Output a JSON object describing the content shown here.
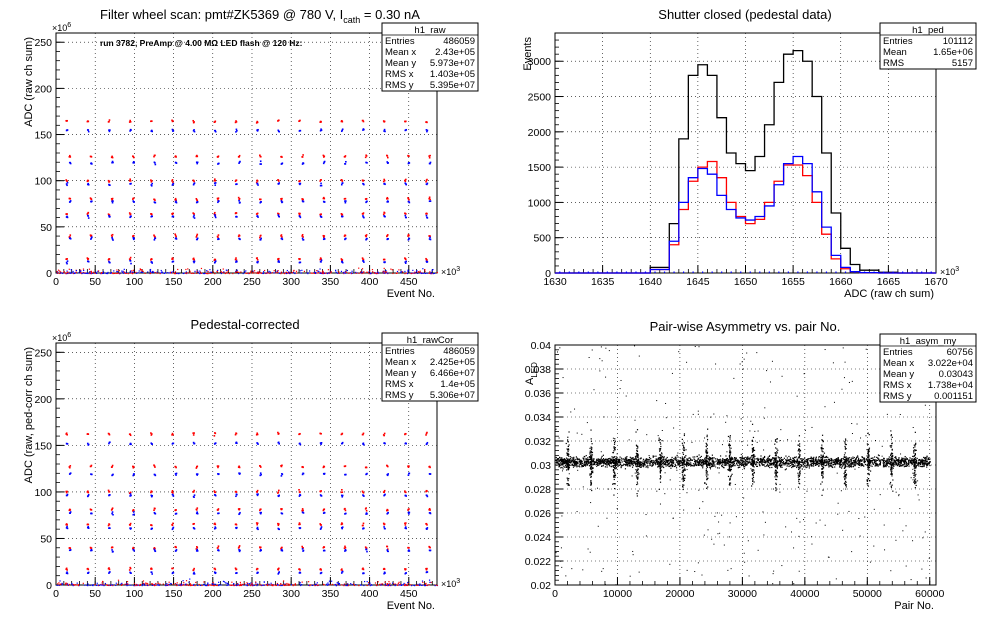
{
  "chart_data": [
    {
      "type": "scatter",
      "title": "Filter wheel scan: pmt#ZK5369 @   780 V, I",
      "title_sub": "cath",
      "title_tail": " = 0.30 nA",
      "annotation": "run 3782, PreAmp @ 4.00 MΩ LED flash @  120 Hz:",
      "xlabel": "Event No.",
      "ylabel": "ADC (raw ch sum)",
      "x_exponent": "×10",
      "x_exponent_power": "3",
      "y_exponent": "×10",
      "y_exponent_power": "6",
      "xlim": [
        0,
        486
      ],
      "ylim": [
        0,
        260
      ],
      "xticks": [
        "0",
        "50",
        "100",
        "150",
        "200",
        "250",
        "300",
        "350",
        "400",
        "450"
      ],
      "yticks": [
        "0",
        "50",
        "100",
        "150",
        "200",
        "250"
      ],
      "grid": true,
      "stats": {
        "name": "h1_raw",
        "rows": [
          [
            "Entries",
            "486059"
          ],
          [
            "Mean x",
            "2.43e+05"
          ],
          [
            "Mean y",
            "5.973e+07"
          ],
          [
            "RMS x",
            "1.403e+05"
          ],
          [
            "RMS y",
            "5.395e+07"
          ]
        ]
      },
      "series": [
        {
          "color": "#ff0000",
          "levels": [
            165,
            127,
            101,
            81,
            65,
            41,
            16
          ]
        },
        {
          "color": "#0000ff",
          "levels": [
            155,
            120,
            97,
            78,
            62,
            38,
            13
          ]
        }
      ]
    },
    {
      "type": "line",
      "title": "Shutter closed (pedestal data)",
      "xlabel": "ADC (raw ch sum)",
      "ylabel": "Events",
      "x_exponent": "×10",
      "x_exponent_power": "3",
      "xlim": [
        1630,
        1670
      ],
      "ylim": [
        0,
        3400
      ],
      "xticks": [
        "1630",
        "1635",
        "1640",
        "1645",
        "1650",
        "1655",
        "1660",
        "1665",
        "1670"
      ],
      "yticks": [
        "0",
        "500",
        "1000",
        "1500",
        "2000",
        "2500",
        "3000"
      ],
      "grid": true,
      "stats": {
        "name": "h1_ped",
        "rows": [
          [
            "Entries",
            "101112"
          ],
          [
            "Mean",
            "1.65e+06"
          ],
          [
            "RMS",
            "5157"
          ]
        ]
      },
      "series": [
        {
          "color": "#000000",
          "x": [
            1638,
            1640,
            1642,
            1643,
            1644,
            1645,
            1646,
            1647,
            1648,
            1649,
            1650,
            1651,
            1652,
            1653,
            1654,
            1655,
            1656,
            1657,
            1658,
            1659,
            1660,
            1661,
            1662,
            1664,
            1666
          ],
          "y": [
            0,
            80,
            700,
            1900,
            2800,
            2950,
            2800,
            2200,
            1700,
            1550,
            1450,
            1650,
            2100,
            2700,
            3100,
            3150,
            3000,
            2500,
            1700,
            850,
            350,
            120,
            40,
            10,
            0
          ]
        },
        {
          "color": "#ff0000",
          "x": [
            1638,
            1640,
            1642,
            1643,
            1644,
            1645,
            1646,
            1647,
            1648,
            1649,
            1650,
            1651,
            1652,
            1653,
            1654,
            1655,
            1656,
            1657,
            1658,
            1659,
            1660,
            1661,
            1662,
            1664
          ],
          "y": [
            0,
            50,
            400,
            900,
            1300,
            1500,
            1580,
            1350,
            1000,
            800,
            700,
            760,
            1000,
            1300,
            1530,
            1530,
            1380,
            1000,
            550,
            200,
            60,
            20,
            5,
            0
          ]
        },
        {
          "color": "#0000ff",
          "x": [
            1638,
            1640,
            1642,
            1643,
            1644,
            1645,
            1646,
            1647,
            1648,
            1649,
            1650,
            1651,
            1652,
            1653,
            1654,
            1655,
            1656,
            1657,
            1658,
            1659,
            1660,
            1661,
            1662,
            1664
          ],
          "y": [
            0,
            50,
            450,
            1000,
            1350,
            1480,
            1400,
            1100,
            900,
            780,
            750,
            800,
            950,
            1250,
            1550,
            1650,
            1550,
            1150,
            650,
            250,
            80,
            20,
            5,
            0
          ]
        }
      ]
    },
    {
      "type": "scatter",
      "title": "Pedestal-corrected",
      "xlabel": "Event No.",
      "ylabel": "ADC (raw, ped-corr ch sum)",
      "x_exponent": "×10",
      "x_exponent_power": "3",
      "y_exponent": "×10",
      "y_exponent_power": "6",
      "xlim": [
        0,
        486
      ],
      "ylim": [
        0,
        260
      ],
      "xticks": [
        "0",
        "50",
        "100",
        "150",
        "200",
        "250",
        "300",
        "350",
        "400",
        "450"
      ],
      "yticks": [
        "0",
        "50",
        "100",
        "150",
        "200",
        "250"
      ],
      "grid": true,
      "stats": {
        "name": "h1_rawCor",
        "rows": [
          [
            "Entries",
            "486059"
          ],
          [
            "Mean x",
            "2.425e+05"
          ],
          [
            "Mean y",
            "6.466e+07"
          ],
          [
            "RMS x",
            "1.4e+05"
          ],
          [
            "RMS y",
            "5.306e+07"
          ]
        ]
      },
      "series": [
        {
          "color": "#ff0000",
          "levels": [
            163,
            128,
            101,
            82,
            66,
            41,
            18
          ]
        },
        {
          "color": "#0000ff",
          "levels": [
            153,
            120,
            97,
            78,
            62,
            38,
            14
          ]
        }
      ]
    },
    {
      "type": "scatter",
      "title": "Pair-wise Asymmetry vs. pair No.",
      "xlabel": "Pair No.",
      "ylabel": "A",
      "ylabel_sub": "LED",
      "xlim": [
        0,
        61000
      ],
      "ylim": [
        0.02,
        0.04
      ],
      "xticks": [
        "0",
        "10000",
        "20000",
        "30000",
        "40000",
        "50000",
        "60000"
      ],
      "yticks": [
        "0.02",
        "0.022",
        "0.024",
        "0.026",
        "0.028",
        "0.03",
        "0.032",
        "0.034",
        "0.036",
        "0.038",
        "0.04"
      ],
      "grid": true,
      "stats": {
        "name": "h1_asym_my",
        "rows": [
          [
            "Entries",
            "60756"
          ],
          [
            "Mean x",
            "3.022e+04"
          ],
          [
            "Mean y",
            "0.03043"
          ],
          [
            "RMS x",
            "1.738e+04"
          ],
          [
            "RMS y",
            "0.001151"
          ]
        ]
      },
      "series": [
        {
          "color": "#000000",
          "center": 0.0303,
          "width": 0.0007
        }
      ]
    }
  ]
}
